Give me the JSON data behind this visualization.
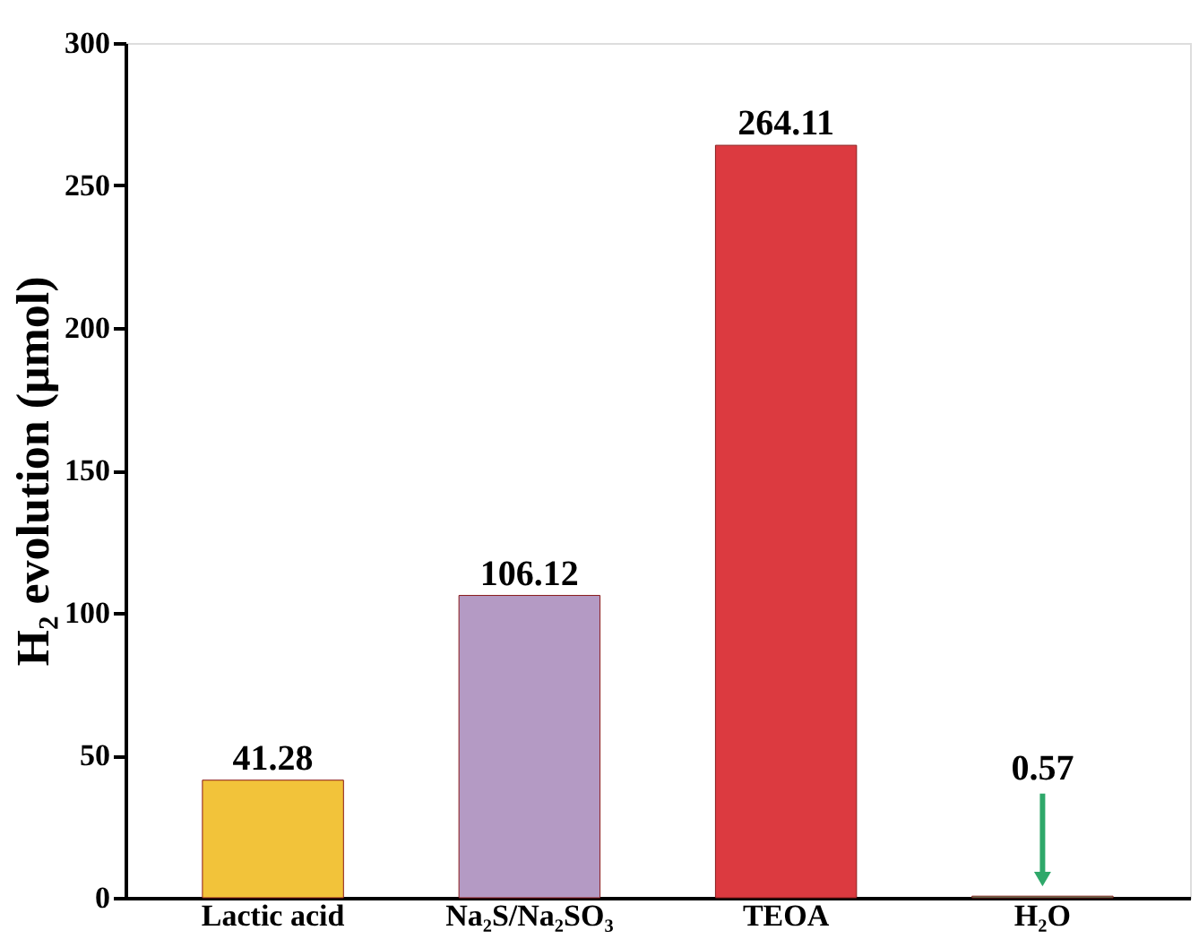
{
  "chart_data": {
    "type": "bar",
    "ylabel": "H₂ evolution (μmol)",
    "categories": [
      "Lactic acid",
      "Na₂S/Na₂SO₃",
      "TEOA",
      "H₂O"
    ],
    "values": [
      41.28,
      106.12,
      264.11,
      0.57
    ],
    "colors": [
      "#f2c33a",
      "#b49ac4",
      "#dc3a40",
      "#2fa86a"
    ],
    "ylim": [
      0,
      300
    ],
    "yticks": [
      0,
      50,
      100,
      150,
      200,
      250,
      300
    ],
    "data_labels": true,
    "grid": false
  }
}
